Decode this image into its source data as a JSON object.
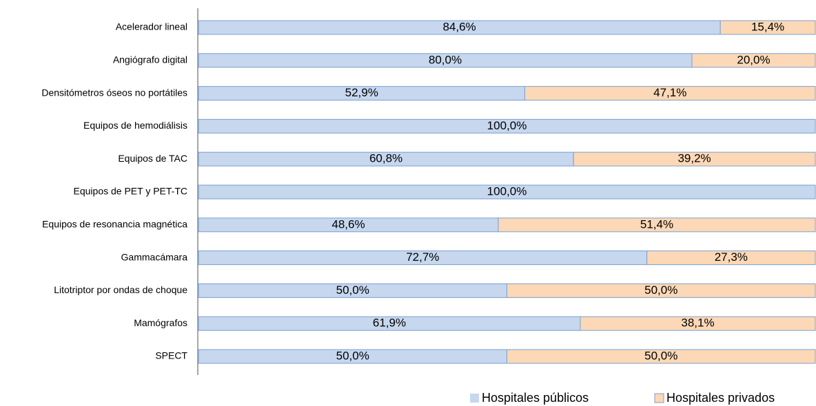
{
  "chart_data": {
    "type": "stacked_bar_horizontal",
    "categories": [
      "Acelerador lineal",
      "Angiógrafo digital",
      "Densitómetros óseos no portátiles",
      "Equipos de hemodiálisis",
      "Equipos de TAC",
      "Equipos de PET y PET-TC",
      "Equipos de resonancia magnética",
      "Gammacámara",
      "Litotriptor por ondas de choque",
      "Mamógrafos",
      "SPECT"
    ],
    "series": [
      {
        "name": "Hospitales públicos",
        "color": "#c6d7ee",
        "stroke": "#7a9fd0",
        "values": [
          84.6,
          80.0,
          52.9,
          100.0,
          60.8,
          100.0,
          48.6,
          72.7,
          50.0,
          61.9,
          50.0
        ],
        "value_labels": [
          "84,6%",
          "80,0%",
          "52,9%",
          "100,0%",
          "60,8%",
          "100,0%",
          "48,6%",
          "72,7%",
          "50,0%",
          "61,9%",
          "50,0%"
        ]
      },
      {
        "name": "Hospitales privados",
        "color": "#fcd8b6",
        "stroke": "#7a9fd0",
        "values": [
          15.4,
          20.0,
          47.1,
          0,
          39.2,
          0,
          51.4,
          27.3,
          50.0,
          38.1,
          50.0
        ],
        "value_labels": [
          "15,4%",
          "20,0%",
          "47,1%",
          null,
          "39,2%",
          null,
          "51,4%",
          "27,3%",
          "50,0%",
          "38,1%",
          "50,0%"
        ]
      }
    ],
    "xlim": [
      0,
      100
    ],
    "legend": "bottom-right"
  }
}
